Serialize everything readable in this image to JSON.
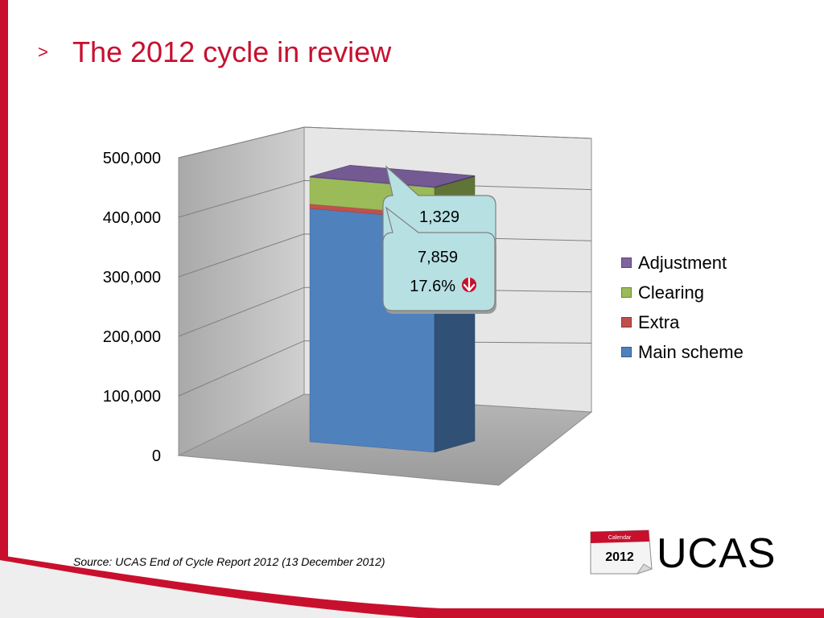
{
  "slide": {
    "title_marker": ">",
    "title": "The 2012 cycle in review",
    "source": "Source: UCAS End of Cycle Report 2012 (13 December 2012)"
  },
  "logo": {
    "calendar_word": "Calendar",
    "year": "2012",
    "brand": "UCAS"
  },
  "colors": {
    "brand_red": "#c8102e",
    "callout_fill": "#b7e0e3"
  },
  "icons": {
    "decrease": "down-arrow-icon"
  },
  "callouts": [
    {
      "value": "1,329",
      "series": "Adjustment"
    },
    {
      "value": "7,859",
      "change": "17.6%",
      "direction": "down",
      "series": "Extra"
    }
  ],
  "chart_data": {
    "type": "bar",
    "stacked": true,
    "three_d": true,
    "categories": [
      ""
    ],
    "series": [
      {
        "name": "Main scheme",
        "values": [
          409500
        ],
        "color": "#4f81bd"
      },
      {
        "name": "Extra",
        "values": [
          7859
        ],
        "color": "#c0504d"
      },
      {
        "name": "Clearing",
        "values": [
          47000
        ],
        "color": "#9bbb59"
      },
      {
        "name": "Adjustment",
        "values": [
          1329
        ],
        "color": "#8064a2"
      }
    ],
    "ylim": [
      0,
      500000
    ],
    "yticks": [
      0,
      100000,
      200000,
      300000,
      400000,
      500000
    ],
    "ytick_labels": [
      "0",
      "100,000",
      "200,000",
      "300,000",
      "400,000",
      "500,000"
    ],
    "grid": true,
    "legend": "right",
    "title": "",
    "xlabel": "",
    "ylabel": ""
  }
}
